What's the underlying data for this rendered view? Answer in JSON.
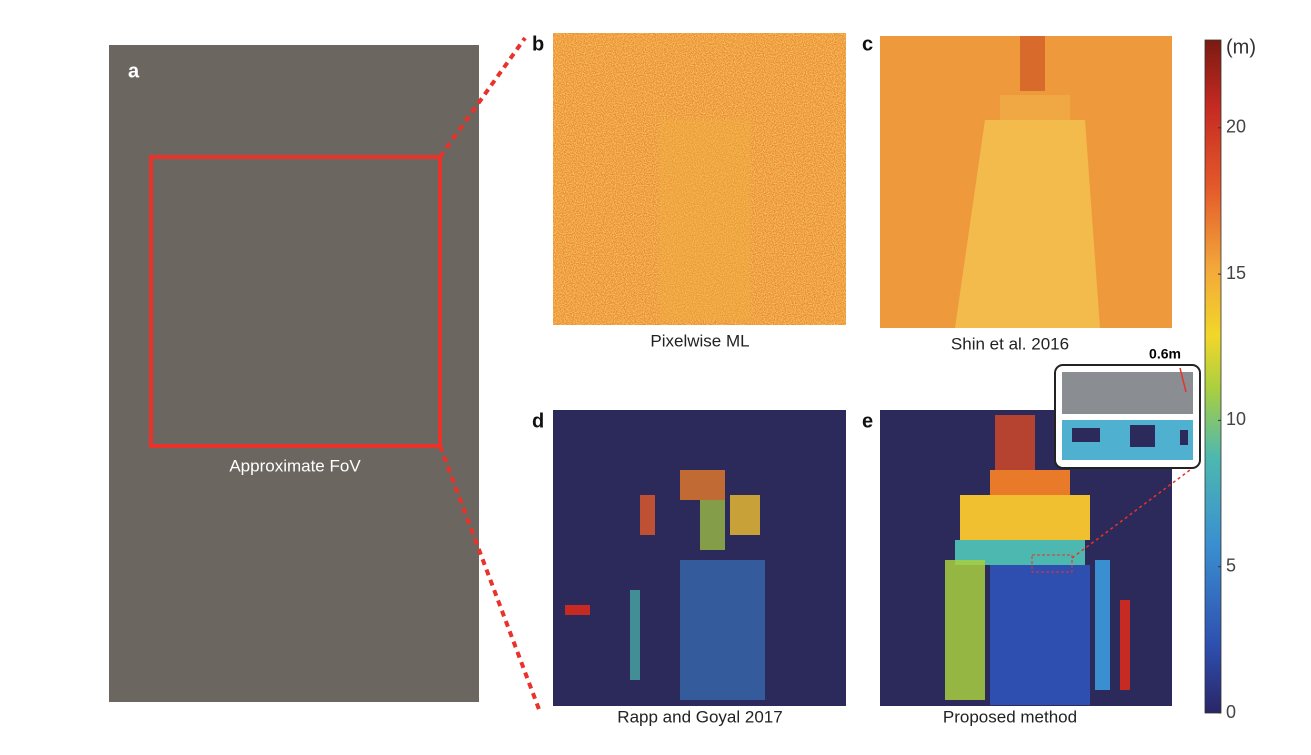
{
  "panels": [
    {
      "letter": "a",
      "caption": "Approximate FoV"
    },
    {
      "letter": "b",
      "caption": "Pixelwise ML"
    },
    {
      "letter": "c",
      "caption": "Shin et al. 2016"
    },
    {
      "letter": "d",
      "caption": "Rapp and Goyal 2017"
    },
    {
      "letter": "e",
      "caption": "Proposed method"
    }
  ],
  "inset_label": "0.6m",
  "colorbar": {
    "unit": "(m)",
    "lim": [
      0,
      23
    ],
    "ticks": [
      0,
      5,
      10,
      15,
      20
    ]
  }
}
